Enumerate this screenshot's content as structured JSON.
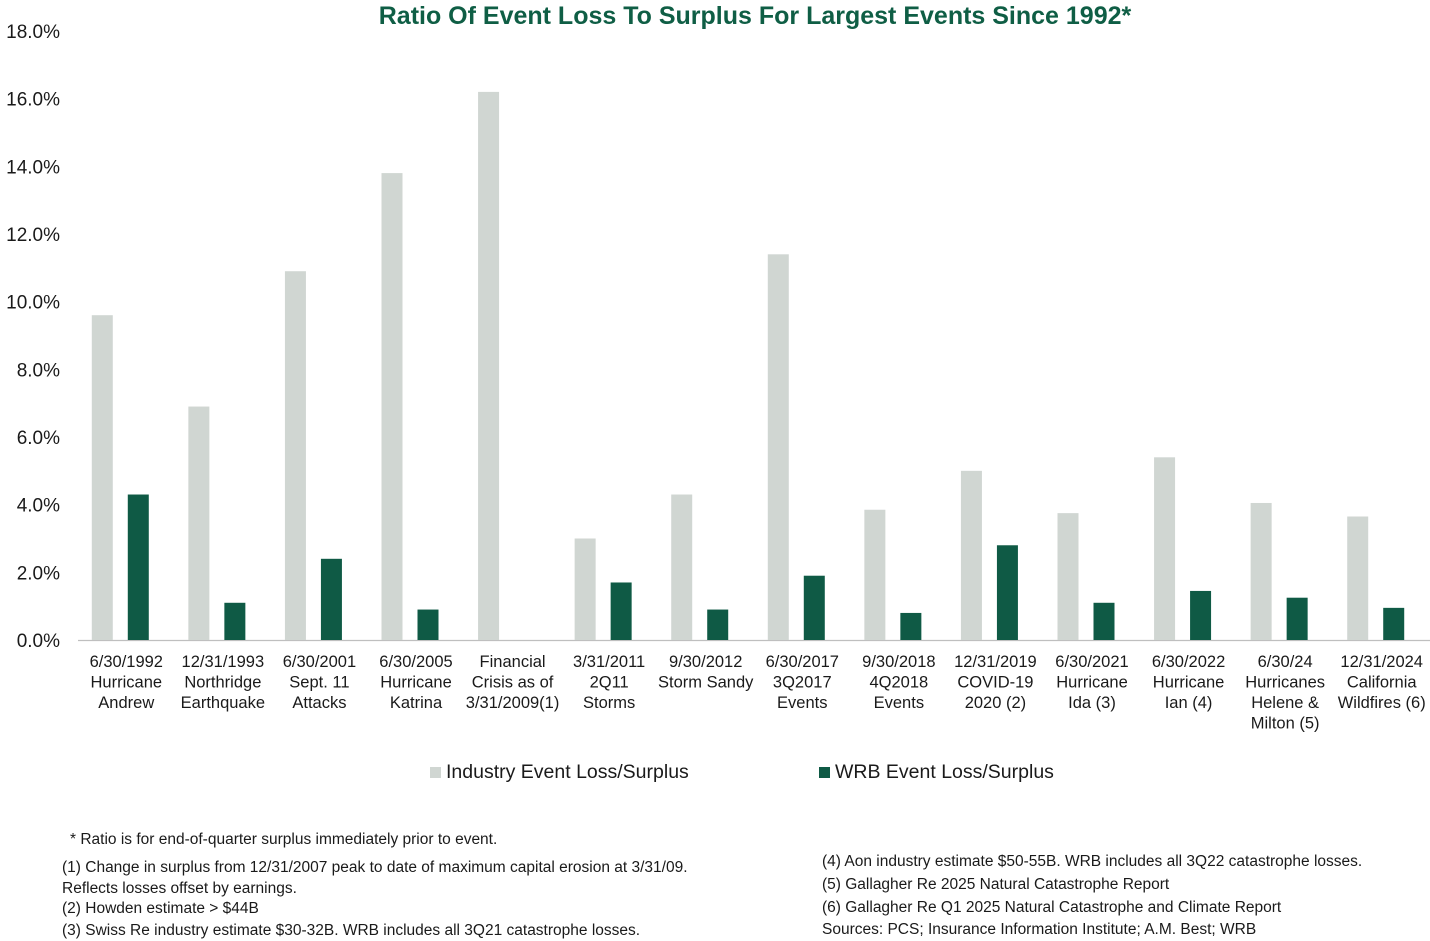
{
  "chart_data": {
    "type": "bar",
    "title": "Ratio Of Event Loss To Surplus For Largest Events Since 1992*",
    "categories": [
      [
        "6/30/1992",
        "Hurricane",
        "Andrew"
      ],
      [
        "12/31/1993",
        "Northridge",
        "Earthquake"
      ],
      [
        "6/30/2001",
        "Sept. 11",
        "Attacks"
      ],
      [
        "6/30/2005",
        "Hurricane",
        "Katrina"
      ],
      [
        "Financial",
        "Crisis as of",
        "3/31/2009(1)"
      ],
      [
        "3/31/2011",
        "2Q11",
        "Storms"
      ],
      [
        "9/30/2012",
        "Storm Sandy"
      ],
      [
        "6/30/2017",
        "3Q2017",
        "Events"
      ],
      [
        "9/30/2018",
        "4Q2018",
        "Events"
      ],
      [
        "12/31/2019",
        "COVID-19",
        "2020 (2)"
      ],
      [
        "6/30/2021",
        "Hurricane",
        "Ida (3)"
      ],
      [
        "6/30/2022",
        "Hurricane",
        "Ian (4)"
      ],
      [
        "6/30/24",
        "Hurricanes",
        "Helene &",
        "Milton (5)"
      ],
      [
        "12/31/2024",
        "California",
        "Wildfires (6)"
      ]
    ],
    "series": [
      {
        "name": "Industry Event Loss/Surplus",
        "color": "#d0d6d2",
        "values": [
          9.6,
          6.9,
          10.9,
          13.8,
          16.2,
          3.0,
          4.3,
          11.4,
          3.85,
          5.0,
          3.75,
          5.4,
          4.05,
          3.65
        ]
      },
      {
        "name": "WRB Event Loss/Surplus",
        "color": "#0f5a45",
        "values": [
          4.3,
          1.1,
          2.4,
          0.9,
          0.0,
          1.7,
          0.9,
          1.9,
          0.8,
          2.8,
          1.1,
          1.45,
          1.25,
          0.95
        ]
      }
    ],
    "ylim": [
      0,
      18
    ],
    "yticks": [
      "0.0%",
      "2.0%",
      "4.0%",
      "6.0%",
      "8.0%",
      "10.0%",
      "12.0%",
      "14.0%",
      "16.0%",
      "18.0%"
    ],
    "xlabel": "",
    "ylabel": "",
    "grid": false,
    "legend": "bottom"
  },
  "footnotes": {
    "asterisk": "* Ratio is for end-of-quarter surplus immediately prior to event.",
    "note1_line1": "(1) Change in surplus from 12/31/2007 peak to date of maximum capital erosion at 3/31/09.",
    "note1_line2": "Reflects losses offset by earnings.",
    "note2": "(2) Howden estimate > $44B",
    "note3": "(3) Swiss Re industry estimate $30-32B. WRB includes all 3Q21 catastrophe losses.",
    "note4": "(4) Aon industry estimate $50-55B. WRB includes all 3Q22 catastrophe losses.",
    "note5": "(5) Gallagher Re 2025 Natural Catastrophe Report",
    "note6": "(6) Gallagher Re Q1 2025 Natural Catastrophe and Climate Report",
    "sources": "Sources: PCS; Insurance Information Institute; A.M. Best; WRB"
  }
}
